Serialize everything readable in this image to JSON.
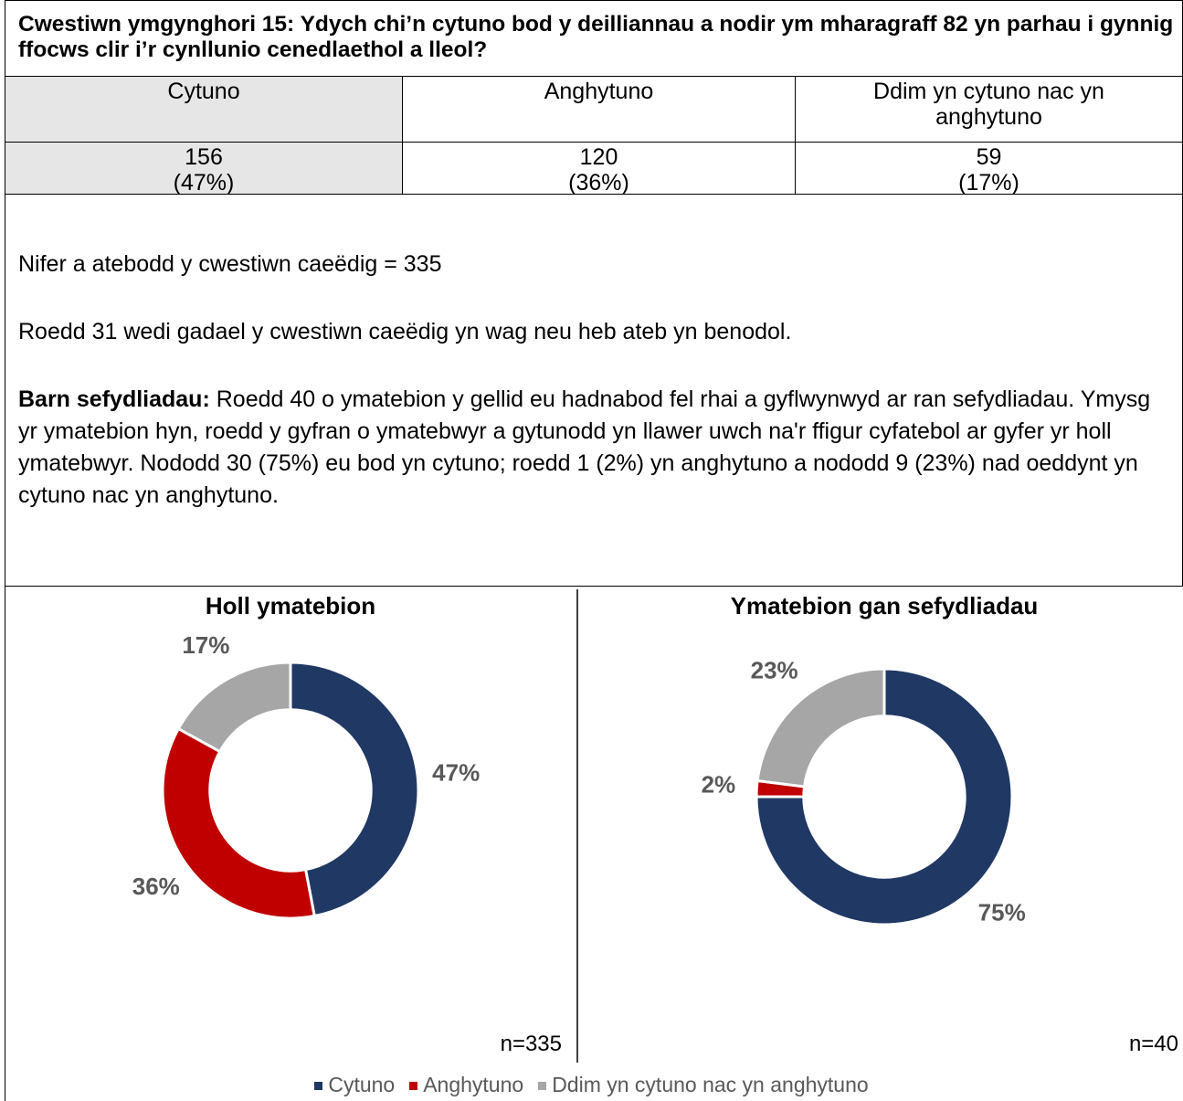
{
  "header": {
    "title": "Cwestiwn ymgynghori 15: Ydych chi’n cytuno bod y deilliannau a nodir ym mharagraff 82 yn parhau i gynnig ffocws clir i’r cynllunio cenedlaethol a lleol?"
  },
  "table": {
    "headers": [
      "Cytuno",
      "Anghytuno",
      "Ddim yn cytuno nac yn anghytuno"
    ],
    "counts": [
      "156",
      "120",
      "59"
    ],
    "percents": [
      "(47%)",
      "(36%)",
      "(17%)"
    ]
  },
  "paragraphs": [
    {
      "text": "Nifer a atebodd y cwestiwn caeëdig = 335"
    },
    {
      "text": "Roedd 31 wedi gadael y cwestiwn caeëdig yn wag neu heb ateb yn benodol."
    },
    {
      "lead": "Barn sefydliadau:",
      "text": "Roedd 40 o ymatebion y gellid eu hadnabod fel rhai a gyflwynwyd ar ran sefydliadau. Ymysg yr ymatebion hyn, roedd y gyfran o ymatebwyr a gytunodd yn llawer uwch na'r ffigur cyfatebol ar gyfer yr holl ymatebwyr. Nododd 30 (75%) eu bod yn cytuno; roedd 1 (2%) yn anghytuno a nododd 9 (23%) nad oeddynt yn cytuno nac yn anghytuno."
    }
  ],
  "chart_data": [
    {
      "type": "pie",
      "donut": true,
      "title": "Holl ymatebion",
      "categories": [
        "Cytuno",
        "Anghytuno",
        "Ddim yn cytuno nac yn anghytuno"
      ],
      "values": [
        47,
        36,
        17
      ],
      "value_labels": [
        "47%",
        "36%",
        "17%"
      ],
      "colors": [
        "#203864",
        "#c00000",
        "#a6a6a6"
      ],
      "note": "n=335"
    },
    {
      "type": "pie",
      "donut": true,
      "title": "Ymatebion gan sefydliadau",
      "values": [
        75,
        2,
        23
      ],
      "value_labels": [
        "75%",
        "2%",
        "23%"
      ],
      "colors": [
        "#203864",
        "#c00000",
        "#a6a6a6"
      ],
      "note": "n=40"
    }
  ]
}
